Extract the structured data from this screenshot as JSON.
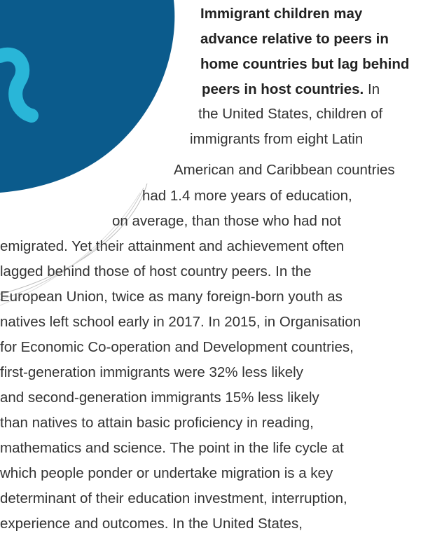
{
  "bold_lines": [
    "Immigrant children may",
    "advance relative to peers in",
    "home countries but lag behind",
    "peers in host countries."
  ],
  "lines": [
    "In",
    "the United States, children of",
    "immigrants from eight Latin",
    "American and Caribbean countries",
    "had 1.4 more years of education,",
    "on average, than those who had not",
    "emigrated. Yet their attainment and achievement often",
    "lagged behind those of host country peers. In the",
    "European Union, twice as many foreign-born youth as",
    "natives left school early in 2017. In 2015, in Organisation",
    "for Economic Co-operation and Development countries,",
    "first-generation immigrants were 32% less likely",
    "and second-generation immigrants 15% less likely",
    "than natives to attain basic proficiency in reading,",
    "mathematics and science. The point in the life cycle at",
    "which people ponder or undertake migration is a key",
    "determinant of their education investment, interruption,",
    "experience and outcomes. In the United States,"
  ]
}
